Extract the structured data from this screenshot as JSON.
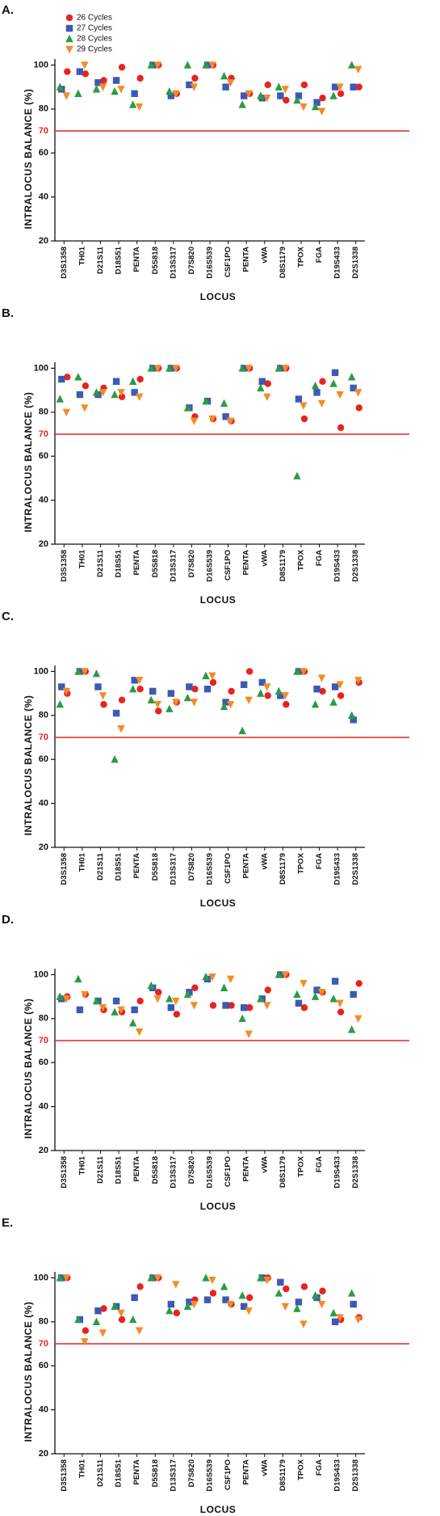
{
  "chart_data": [
    {
      "type": "scatter",
      "title": "A.",
      "xlabel": "LOCUS",
      "ylabel": "INTRALOCUS  BALANCE  (%)",
      "legend": "upper left",
      "categories": [
        "D3S1358",
        "TH01",
        "D21S11",
        "D18S51",
        "PENTA",
        "D5S818",
        "D13S317",
        "D7S820",
        "D16S539",
        "CSF1PO",
        "PENTA",
        "vWA",
        "D8S1179",
        "TPOX",
        "FGA",
        "D19S433",
        "D2S1338"
      ],
      "ylim": [
        20,
        102
      ],
      "yticks": [
        20,
        40,
        60,
        80,
        100
      ],
      "threshold": 70,
      "threshold_color": "#e8231f",
      "series": [
        {
          "name": "26 Cycles",
          "color": "#e8231f",
          "marker": "circle",
          "values": [
            97,
            96,
            93,
            99,
            94,
            100,
            87,
            94,
            100,
            94,
            87,
            91,
            84,
            91,
            85,
            87,
            90
          ]
        },
        {
          "name": "27 Cycles",
          "color": "#3c59b4",
          "marker": "square",
          "values": [
            89,
            97,
            92,
            93,
            87,
            100,
            86,
            91,
            100,
            90,
            86,
            85,
            86,
            86,
            83,
            90,
            90
          ]
        },
        {
          "name": "28 Cycles",
          "color": "#2b9b45",
          "marker": "triangle",
          "values": [
            90,
            87,
            89,
            88,
            82,
            100,
            88,
            100,
            100,
            95,
            82,
            86,
            90,
            84,
            81,
            86,
            100
          ]
        },
        {
          "name": "29 Cycles",
          "color": "#f28c28",
          "marker": "triangle-down",
          "values": [
            86,
            100,
            90,
            89,
            81,
            100,
            87,
            90,
            100,
            92,
            87,
            85,
            89,
            81,
            79,
            90,
            98
          ]
        }
      ]
    },
    {
      "type": "scatter",
      "title": "B.",
      "xlabel": "LOCUS",
      "ylabel": "INTRALOCUS  BALANCE  (%)",
      "categories": [
        "D3S1358",
        "TH01",
        "D21S11",
        "D18S51",
        "PENTA",
        "D5S818",
        "D13S317",
        "D7S820",
        "D16S539",
        "CSF1PO",
        "PENTA",
        "vWA",
        "D8S1179",
        "TPOX",
        "FGA",
        "D19S433",
        "D2S1338"
      ],
      "ylim": [
        20,
        102
      ],
      "yticks": [
        20,
        40,
        60,
        80,
        100
      ],
      "threshold": 70,
      "threshold_color": "#e8231f",
      "series": [
        {
          "color": "#e8231f",
          "marker": "circle",
          "values": [
            96,
            92,
            91,
            87,
            95,
            100,
            100,
            78,
            77,
            76,
            100,
            93,
            100,
            77,
            94,
            73,
            82
          ]
        },
        {
          "color": "#3c59b4",
          "marker": "square",
          "values": [
            95,
            88,
            88,
            94,
            89,
            100,
            100,
            82,
            85,
            78,
            100,
            94,
            100,
            86,
            89,
            98,
            91
          ]
        },
        {
          "color": "#2b9b45",
          "marker": "triangle",
          "values": [
            86,
            96,
            89,
            88,
            94,
            100,
            100,
            82,
            85,
            84,
            100,
            91,
            100,
            51,
            92,
            93,
            96
          ]
        },
        {
          "color": "#f28c28",
          "marker": "triangle-down",
          "values": [
            80,
            82,
            89,
            89,
            87,
            100,
            100,
            76,
            77,
            76,
            100,
            87,
            100,
            83,
            84,
            88,
            89
          ]
        }
      ]
    },
    {
      "type": "scatter",
      "title": "C.",
      "xlabel": "LOCUS",
      "ylabel": "INTRALOCUS  BALANCE  (%)",
      "categories": [
        "D3S1358",
        "TH01",
        "D21S11",
        "D18S51",
        "PENTA",
        "D5S818",
        "D13S317",
        "D7S820",
        "D16S539",
        "CSF1PO",
        "PENTA",
        "vWA",
        "D8S1179",
        "TPOX",
        "FGA",
        "D19S433",
        "D2S1338"
      ],
      "ylim": [
        20,
        102
      ],
      "yticks": [
        20,
        40,
        60,
        80,
        100
      ],
      "threshold": 70,
      "threshold_color": "#e8231f",
      "series": [
        {
          "color": "#e8231f",
          "marker": "circle",
          "values": [
            90,
            100,
            85,
            87,
            92,
            82,
            86,
            92,
            95,
            91,
            100,
            89,
            85,
            100,
            91,
            89,
            95
          ]
        },
        {
          "color": "#3c59b4",
          "marker": "square",
          "values": [
            93,
            100,
            93,
            81,
            96,
            91,
            90,
            93,
            92,
            86,
            94,
            95,
            89,
            100,
            92,
            93,
            78
          ]
        },
        {
          "color": "#2b9b45",
          "marker": "triangle",
          "values": [
            85,
            100,
            99,
            60,
            92,
            87,
            83,
            88,
            98,
            84,
            73,
            90,
            91,
            100,
            85,
            86,
            80
          ]
        },
        {
          "color": "#f28c28",
          "marker": "triangle-down",
          "values": [
            91,
            100,
            89,
            74,
            96,
            85,
            86,
            86,
            98,
            85,
            87,
            93,
            89,
            100,
            97,
            94,
            96
          ]
        }
      ]
    },
    {
      "type": "scatter",
      "title": "D.",
      "xlabel": "LOCUS",
      "ylabel": "INTRALOCUS  BALANCE  (%)",
      "categories": [
        "D3S1358",
        "TH01",
        "D21S11",
        "D18S51",
        "PENTA",
        "D5S818",
        "D13S317",
        "D7S820",
        "D16S539",
        "CSF1PO",
        "PENTA",
        "vWA",
        "D8S1179",
        "TPOX",
        "FGA",
        "D19S433",
        "D2S1338"
      ],
      "ylim": [
        20,
        102
      ],
      "yticks": [
        20,
        40,
        60,
        80,
        100
      ],
      "threshold": 70,
      "threshold_color": "#e8231f",
      "series": [
        {
          "color": "#e8231f",
          "marker": "circle",
          "values": [
            90,
            91,
            84,
            83,
            88,
            92,
            82,
            94,
            86,
            86,
            85,
            93,
            100,
            85,
            92,
            83,
            96
          ]
        },
        {
          "color": "#3c59b4",
          "marker": "square",
          "values": [
            89,
            84,
            88,
            88,
            84,
            94,
            85,
            92,
            98,
            86,
            85,
            89,
            100,
            87,
            93,
            97,
            91
          ]
        },
        {
          "color": "#2b9b45",
          "marker": "triangle",
          "values": [
            90,
            98,
            88,
            83,
            78,
            95,
            89,
            91,
            99,
            94,
            80,
            89,
            100,
            91,
            90,
            89,
            75
          ]
        },
        {
          "color": "#f28c28",
          "marker": "triangle-down",
          "values": [
            89,
            91,
            85,
            84,
            74,
            89,
            88,
            86,
            99,
            98,
            73,
            86,
            100,
            96,
            92,
            87,
            80
          ]
        }
      ]
    },
    {
      "type": "scatter",
      "title": "E.",
      "xlabel": "LOCUS",
      "ylabel": "INTRALOCUS  BALANCE  (%)",
      "categories": [
        "D3S1358",
        "TH01",
        "D21S11",
        "D18S51",
        "PENTA",
        "D5S818",
        "D13S317",
        "D7S820",
        "D16S539",
        "CSF1PO",
        "PENTA",
        "vWA",
        "D8S1179",
        "TPOX",
        "FGA",
        "D19S433",
        "D2S1338"
      ],
      "ylim": [
        20,
        102
      ],
      "yticks": [
        20,
        40,
        60,
        80,
        100
      ],
      "threshold": 70,
      "threshold_color": "#e8231f",
      "series": [
        {
          "color": "#e8231f",
          "marker": "circle",
          "values": [
            100,
            76,
            86,
            81,
            96,
            100,
            84,
            90,
            93,
            88,
            91,
            100,
            95,
            96,
            94,
            81,
            82
          ]
        },
        {
          "color": "#3c59b4",
          "marker": "square",
          "values": [
            100,
            81,
            85,
            87,
            91,
            100,
            88,
            89,
            90,
            90,
            87,
            100,
            98,
            89,
            91,
            80,
            88
          ]
        },
        {
          "color": "#2b9b45",
          "marker": "triangle",
          "values": [
            100,
            81,
            80,
            87,
            81,
            100,
            85,
            87,
            100,
            96,
            92,
            100,
            93,
            86,
            92,
            84,
            93
          ]
        },
        {
          "color": "#f28c28",
          "marker": "triangle-down",
          "values": [
            100,
            71,
            75,
            84,
            76,
            100,
            97,
            88,
            99,
            88,
            85,
            99,
            87,
            79,
            88,
            82,
            81
          ]
        }
      ]
    }
  ]
}
